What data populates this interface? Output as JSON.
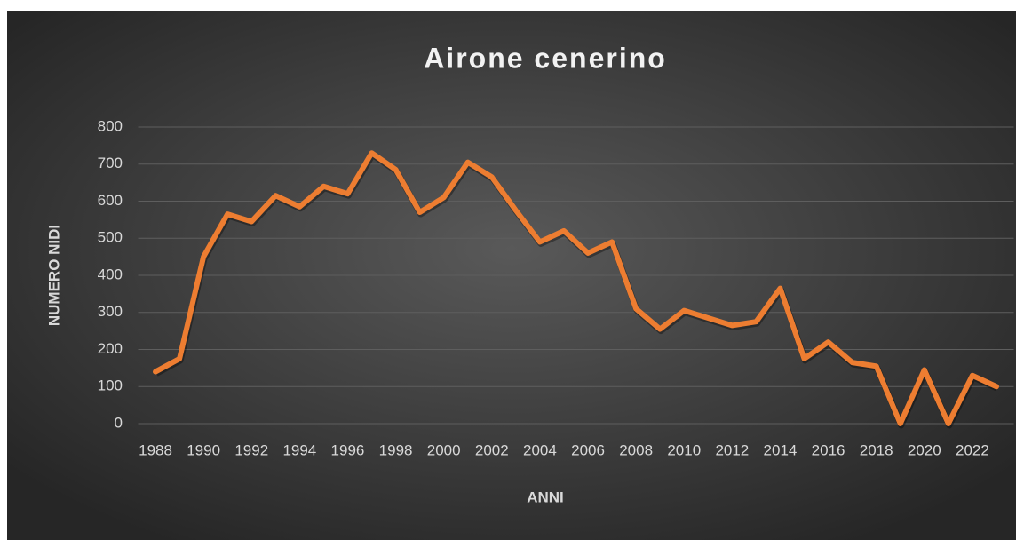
{
  "chart_data": {
    "type": "line",
    "title": "Airone cenerino",
    "x_label": "ANNI",
    "y_label": "NUMERO NIDI",
    "categories": [
      "1988",
      null,
      "1990",
      null,
      "1992",
      null,
      "1994",
      null,
      "1996",
      null,
      "1998",
      null,
      "2000",
      null,
      "2002",
      null,
      "2004",
      null,
      "2006",
      null,
      "2008",
      null,
      "2010",
      null,
      "2012",
      null,
      "2014",
      null,
      "2016",
      null,
      "2018",
      null,
      "2020",
      null,
      "2022",
      null
    ],
    "series": [
      {
        "name": "Airone cenerino",
        "color": "#ed7d31",
        "values": [
          140,
          175,
          450,
          565,
          545,
          615,
          585,
          640,
          620,
          730,
          685,
          570,
          610,
          705,
          665,
          575,
          490,
          520,
          460,
          490,
          310,
          255,
          305,
          285,
          265,
          275,
          365,
          175,
          220,
          165,
          155,
          0,
          145,
          0,
          130,
          100
        ]
      }
    ],
    "ylim": [
      0,
      800
    ],
    "yticks": [
      0,
      100,
      200,
      300,
      400,
      500,
      600,
      700,
      800
    ],
    "grid": true
  }
}
